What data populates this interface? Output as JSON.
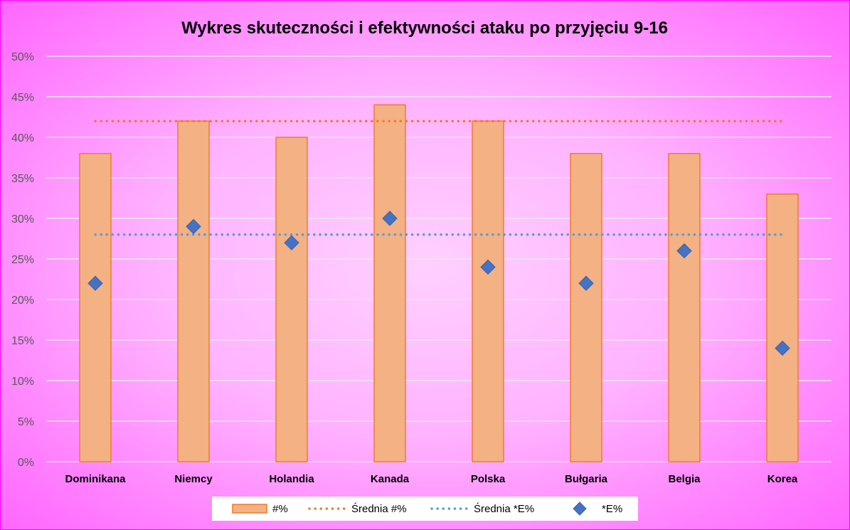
{
  "chart_data": {
    "type": "bar",
    "title": "Wykres skuteczności i efektywności ataku po przyjęciu 9-16",
    "categories": [
      "Dominikana",
      "Niemcy",
      "Holandia",
      "Kanada",
      "Polska",
      "Bułgaria",
      "Belgia",
      "Korea"
    ],
    "series": [
      {
        "name": "#%",
        "kind": "bar",
        "color": "#f4b183",
        "edge": "#ed7d31",
        "values": [
          38,
          42,
          40,
          44,
          42,
          38,
          38,
          33
        ]
      },
      {
        "name": "Średnia #%",
        "kind": "dotted-line",
        "color": "#ed7d31",
        "values": [
          42,
          42,
          42,
          42,
          42,
          42,
          42,
          42
        ]
      },
      {
        "name": "Średnia *E%",
        "kind": "dotted-line",
        "color": "#5b9bd5",
        "values": [
          28,
          28,
          28,
          28,
          28,
          28,
          28,
          28
        ]
      },
      {
        "name": "*E%",
        "kind": "scatter-diamond",
        "color": "#4472c4",
        "values": [
          22,
          29,
          27,
          30,
          24,
          22,
          26,
          14
        ]
      }
    ],
    "yticks": [
      "0%",
      "5%",
      "10%",
      "15%",
      "20%",
      "25%",
      "30%",
      "35%",
      "40%",
      "45%",
      "50%"
    ],
    "ylim": [
      0,
      50
    ],
    "grid": true,
    "legend_position": "bottom"
  }
}
